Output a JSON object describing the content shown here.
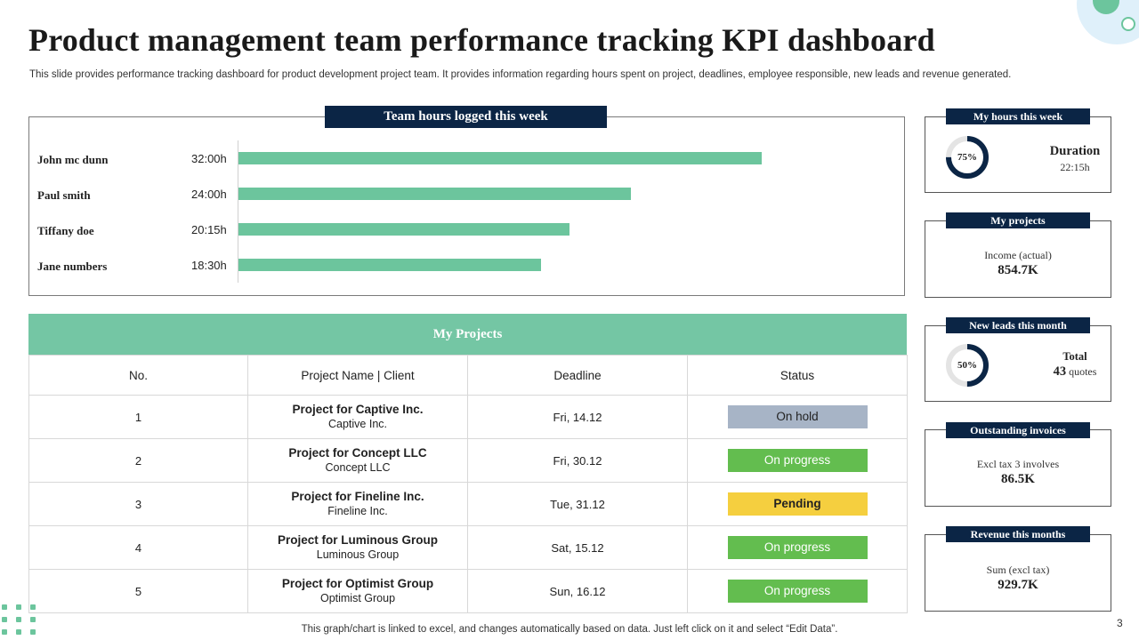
{
  "title": "Product management team performance tracking KPI dashboard",
  "subtitle": "This slide provides performance tracking dashboard for product development project team. It provides information regarding hours spent on project, deadlines, employee responsible, new leads and revenue generated.",
  "hours": {
    "header": "Team hours logged this week",
    "rows": [
      {
        "name": "John mc dunn",
        "value": "32:00h",
        "hours": 32.0
      },
      {
        "name": "Paul smith",
        "value": "24:00h",
        "hours": 24.0
      },
      {
        "name": "Tiffany doe",
        "value": "20:15h",
        "hours": 20.25
      },
      {
        "name": "Jane numbers",
        "value": "18:30h",
        "hours": 18.5
      }
    ],
    "color": "#6cc59d"
  },
  "projects": {
    "title": "My Projects",
    "columns": [
      "No.",
      "Project Name | Client",
      "Deadline",
      "Status"
    ],
    "rows": [
      {
        "no": "1",
        "name": "Project for Captive Inc.",
        "client": "Captive Inc.",
        "deadline": "Fri, 14.12",
        "status": "On hold",
        "status_color": "#a7b4c6",
        "status_bold": false
      },
      {
        "no": "2",
        "name": "Project for Concept LLC",
        "client": "Concept LLC",
        "deadline": "Fri, 30.12",
        "status": "On progress",
        "status_color": "#63bd4f",
        "status_bold": false
      },
      {
        "no": "3",
        "name": "Project for Fineline Inc.",
        "client": "Fineline Inc.",
        "deadline": "Tue, 31.12",
        "status": "Pending",
        "status_color": "#f5cf3f",
        "status_bold": true
      },
      {
        "no": "4",
        "name": "Project for Luminous Group",
        "client": "Luminous Group",
        "deadline": "Sat, 15.12",
        "status": "On progress",
        "status_color": "#63bd4f",
        "status_bold": false
      },
      {
        "no": "5",
        "name": "Project for Optimist Group",
        "client": "Optimist Group",
        "deadline": "Sun, 16.12",
        "status": "On progress",
        "status_color": "#63bd4f",
        "status_bold": false
      }
    ]
  },
  "cards": {
    "my_hours": {
      "header": "My hours this week",
      "gauge_label": "75%",
      "gauge_fraction": 0.75,
      "label": "Duration",
      "value": "22:15h"
    },
    "my_projects": {
      "header": "My projects",
      "label": "Income (actual)",
      "value": "854.7K"
    },
    "new_leads": {
      "header": "New leads this month",
      "gauge_label": "50%",
      "gauge_fraction": 0.5,
      "label": "Total",
      "value_number": "43",
      "value_unit": "quotes"
    },
    "invoices": {
      "header": "Outstanding invoices",
      "label": "Excl tax 3 involves",
      "value": "86.5K"
    },
    "revenue": {
      "header": "Revenue this months",
      "label": "Sum (excl tax)",
      "value": "929.7K"
    }
  },
  "colors": {
    "navy": "#0b2545",
    "green": "#6cc59d"
  },
  "footer": "This graph/chart is linked to excel, and changes automatically based on data. Just left click on it and select “Edit Data”.",
  "page_number": "3"
}
